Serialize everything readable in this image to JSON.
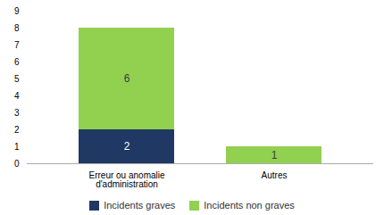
{
  "chart_data": {
    "type": "bar",
    "stacked": true,
    "categories": [
      "Erreur ou anomalie\nd'administration",
      "Autres"
    ],
    "series": [
      {
        "name": "Incidents graves",
        "color": "#1f3864",
        "values": [
          2,
          0
        ]
      },
      {
        "name": "Incidents non graves",
        "color": "#92d050",
        "values": [
          6,
          1
        ]
      }
    ],
    "ylim": [
      0,
      9
    ],
    "yticks": [
      0,
      1,
      2,
      3,
      4,
      5,
      6,
      7,
      8,
      9
    ],
    "grid": false,
    "legend": "bottom",
    "data_labels": true
  }
}
